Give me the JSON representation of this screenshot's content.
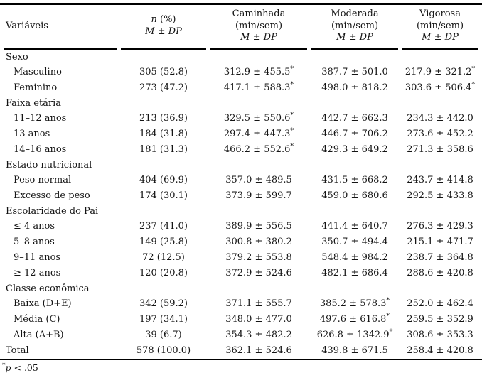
{
  "colors": {
    "background": "#ffffff",
    "text": "#141414",
    "rule": "#000000"
  },
  "table": {
    "columns": [
      {
        "lines": [
          "Variáveis"
        ]
      },
      {
        "lines": [
          "n (%)",
          "M ± DP"
        ]
      },
      {
        "lines": [
          "Caminhada",
          "(min/sem)",
          "M ± DP"
        ]
      },
      {
        "lines": [
          "Moderada",
          "(min/sem)",
          "M ± DP"
        ]
      },
      {
        "lines": [
          "Vigorosa",
          "(min/sem)",
          "M ± DP"
        ]
      }
    ],
    "sections": [
      {
        "header": "Sexo",
        "rows": [
          {
            "label": "Masculino",
            "indent": true,
            "n": "305 (52.8)",
            "caminhada": "312.9 ± 455.5*",
            "moderada": "387.7 ± 501.0",
            "vigorosa": "217.9 ± 321.2*"
          },
          {
            "label": "Feminino",
            "indent": true,
            "n": "273 (47.2)",
            "caminhada": "417.1 ± 588.3*",
            "moderada": "498.0 ± 818.2",
            "vigorosa": "303.6 ± 506.4*"
          }
        ]
      },
      {
        "header": "Faixa etária",
        "rows": [
          {
            "label": "11–12 anos",
            "indent": true,
            "n": "213 (36.9)",
            "caminhada": "329.5 ± 550.6*",
            "moderada": "442.7 ± 662.3",
            "vigorosa": "234.3 ± 442.0"
          },
          {
            "label": "13 anos",
            "indent": true,
            "n": "184 (31.8)",
            "caminhada": "297.4 ± 447.3*",
            "moderada": "446.7 ± 706.2",
            "vigorosa": "273.6 ± 452.2"
          },
          {
            "label": "14–16 anos",
            "indent": true,
            "n": "181 (31.3)",
            "caminhada": "466.2 ± 552.6*",
            "moderada": "429.3 ± 649.2",
            "vigorosa": "271.3 ± 358.6"
          }
        ]
      },
      {
        "header": "Estado nutricional",
        "rows": [
          {
            "label": "Peso normal",
            "indent": true,
            "n": "404 (69.9)",
            "caminhada": "357.0 ± 489.5",
            "moderada": "431.5 ± 668.2",
            "vigorosa": "243.7 ± 414.8"
          },
          {
            "label": "Excesso de peso",
            "indent": true,
            "n": "174 (30.1)",
            "caminhada": "373.9 ± 599.7",
            "moderada": "459.0 ± 680.6",
            "vigorosa": "292.5 ± 433.8"
          }
        ]
      },
      {
        "header": "Escolaridade do Pai",
        "rows": [
          {
            "label": "≤ 4 anos",
            "indent": true,
            "n": "237 (41.0)",
            "caminhada": "389.9 ± 556.5",
            "moderada": "441.4 ± 640.7",
            "vigorosa": "276.3 ± 429.3"
          },
          {
            "label": "5–8 anos",
            "indent": true,
            "n": "149 (25.8)",
            "caminhada": "300.8 ± 380.2",
            "moderada": "350.7 ± 494.4",
            "vigorosa": "215.1 ± 471.7"
          },
          {
            "label": "9–11 anos",
            "indent": true,
            "n": "72 (12.5)",
            "caminhada": "379.2 ± 553.8",
            "moderada": "548.4 ± 984.2",
            "vigorosa": "238.7 ± 364.8"
          },
          {
            "label": "≥ 12 anos",
            "indent": true,
            "n": "120 (20.8)",
            "caminhada": "372.9 ± 524.6",
            "moderada": "482.1 ± 686.4",
            "vigorosa": "288.6 ± 420.8"
          }
        ]
      },
      {
        "header": "Classe econômica",
        "rows": [
          {
            "label": "Baixa (D+E)",
            "indent": true,
            "n": "342 (59.2)",
            "caminhada": "371.1 ± 555.7",
            "moderada": "385.2 ± 578.3*",
            "vigorosa": "252.0 ± 462.4"
          },
          {
            "label": "Média (C)",
            "indent": true,
            "n": "197 (34.1)",
            "caminhada": "348.0 ± 477.0",
            "moderada": "497.6 ± 616.8*",
            "vigorosa": "259.5 ± 352.9"
          },
          {
            "label": "Alta (A+B)",
            "indent": true,
            "n": "39 (6.7)",
            "caminhada": "354.3 ± 482.2",
            "moderada": "626.8 ± 1342.9*",
            "vigorosa": "308.6 ± 353.3"
          }
        ]
      },
      {
        "header": "",
        "rows": [
          {
            "label": "Total",
            "indent": false,
            "n": "578 (100.0)",
            "caminhada": "362.1 ± 524.6",
            "moderada": "439.8 ± 671.5",
            "vigorosa": "258.4 ± 420.8"
          }
        ]
      }
    ],
    "footnote": {
      "marker": "*",
      "var": "p",
      "cond": "< .05"
    }
  }
}
